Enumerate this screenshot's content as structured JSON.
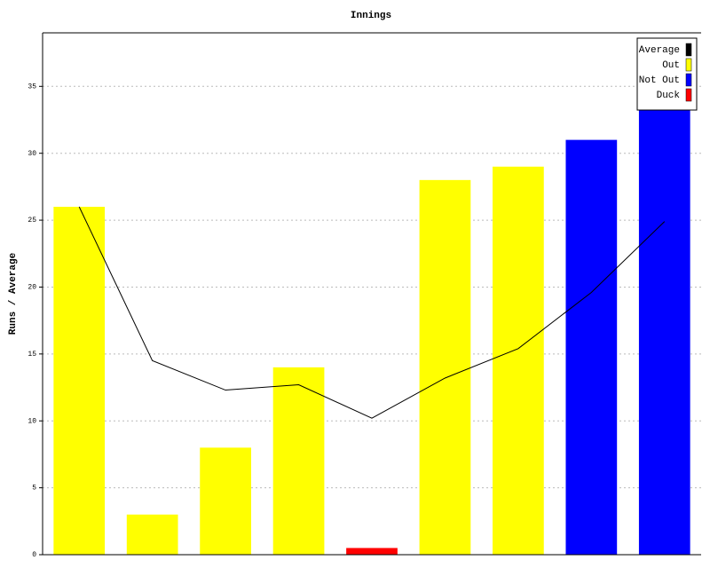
{
  "chart_data": {
    "type": "bar-line",
    "title": "Innings",
    "y_label": "Runs / Average",
    "categories": [
      null,
      null,
      null,
      null,
      null,
      null,
      null,
      null,
      null
    ],
    "series": [
      {
        "name": "Average",
        "color": "#000000",
        "kind": "line",
        "values": [
          26,
          14.5,
          12.3,
          12.7,
          10.2,
          13.2,
          15.4,
          19.6,
          24.9
        ]
      },
      {
        "name": "Out",
        "color": "#ffff00",
        "kind": "bar",
        "values": [
          26,
          3,
          8,
          14,
          null,
          28,
          29,
          null,
          null
        ]
      },
      {
        "name": "Not Out",
        "color": "#0000ff",
        "kind": "bar",
        "values": [
          null,
          null,
          null,
          null,
          null,
          null,
          null,
          31,
          36
        ]
      },
      {
        "name": "Duck",
        "color": "#ff0000",
        "kind": "bar",
        "values": [
          null,
          null,
          null,
          null,
          0.5,
          null,
          null,
          null,
          null
        ]
      }
    ],
    "ylim": [
      0,
      39
    ],
    "yticks": [
      0,
      5,
      10,
      15,
      20,
      25,
      30,
      35
    ],
    "grid": true,
    "legend": "top-right"
  }
}
